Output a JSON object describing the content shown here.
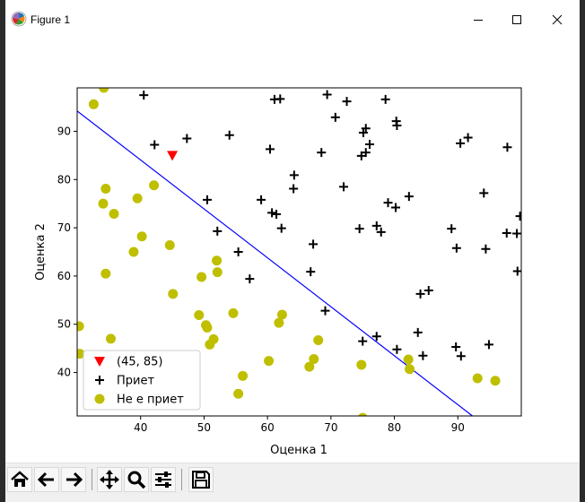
{
  "window": {
    "title": "Figure 1",
    "controls": {
      "minimize": "minimize-icon",
      "maximize": "maximize-icon",
      "close": "close-icon"
    }
  },
  "toolbar": {
    "buttons": [
      "home-icon",
      "back-icon",
      "forward-icon",
      "pan-icon",
      "zoom-icon",
      "configure-icon",
      "save-icon"
    ]
  },
  "chart_data": {
    "type": "scatter",
    "xlabel": "Оценка 1",
    "ylabel": "Оценка 2",
    "xlim": [
      30,
      100
    ],
    "ylim": [
      31,
      99
    ],
    "xticks": [
      40,
      50,
      60,
      70,
      80,
      90
    ],
    "yticks": [
      40,
      50,
      60,
      70,
      80,
      90
    ],
    "legend_position": "lower-left",
    "decision_boundary": {
      "x": [
        30,
        92.3
      ],
      "y": [
        94.2,
        31
      ],
      "color": "#0000ff"
    },
    "series": [
      {
        "name": "(45, 85)",
        "marker": "triangle-down",
        "color": "#ff0000",
        "points": [
          [
            45,
            85
          ]
        ]
      },
      {
        "name": "Приет",
        "marker": "plus",
        "color": "#000000",
        "points": [
          [
            40.5,
            97.5
          ],
          [
            42.2,
            87.2
          ],
          [
            47.3,
            88.5
          ],
          [
            54.0,
            89.2
          ],
          [
            50.5,
            75.8
          ],
          [
            52.1,
            69.3
          ],
          [
            55.4,
            65.0
          ],
          [
            57.2,
            59.4
          ],
          [
            59.0,
            75.8
          ],
          [
            60.4,
            86.3
          ],
          [
            60.7,
            73.1
          ],
          [
            61.1,
            96.6
          ],
          [
            61.4,
            72.8
          ],
          [
            62.0,
            96.7
          ],
          [
            62.2,
            69.9
          ],
          [
            64.2,
            80.9
          ],
          [
            64.1,
            78.1
          ],
          [
            66.8,
            60.9
          ],
          [
            67.2,
            66.6
          ],
          [
            68.5,
            85.6
          ],
          [
            69.1,
            52.8
          ],
          [
            69.4,
            97.6
          ],
          [
            70.7,
            92.9
          ],
          [
            72.0,
            78.5
          ],
          [
            72.5,
            96.2
          ],
          [
            74.5,
            69.8
          ],
          [
            74.8,
            84.9
          ],
          [
            75.1,
            89.7
          ],
          [
            75.0,
            46.5
          ],
          [
            75.5,
            90.6
          ],
          [
            75.5,
            85.6
          ],
          [
            76.1,
            87.3
          ],
          [
            77.2,
            47.5
          ],
          [
            77.2,
            70.4
          ],
          [
            77.9,
            69.1
          ],
          [
            78.6,
            96.6
          ],
          [
            79.0,
            75.2
          ],
          [
            80.2,
            74.2
          ],
          [
            80.3,
            92.1
          ],
          [
            80.4,
            91.2
          ],
          [
            80.4,
            44.8
          ],
          [
            82.3,
            76.5
          ],
          [
            83.7,
            48.3
          ],
          [
            84.1,
            56.3
          ],
          [
            84.5,
            43.5
          ],
          [
            85.4,
            57.0
          ],
          [
            89.0,
            69.8
          ],
          [
            89.7,
            45.3
          ],
          [
            89.8,
            65.8
          ],
          [
            90.4,
            87.5
          ],
          [
            90.5,
            43.4
          ],
          [
            91.6,
            88.7
          ],
          [
            94.1,
            77.2
          ],
          [
            94.4,
            65.6
          ],
          [
            94.9,
            45.8
          ],
          [
            97.7,
            68.9
          ],
          [
            97.8,
            86.7
          ],
          [
            99.3,
            68.8
          ],
          [
            99.4,
            61.0
          ],
          [
            99.8,
            72.4
          ]
        ]
      },
      {
        "name": "Не е приет",
        "marker": "circle",
        "color": "#bfbf00",
        "points": [
          [
            30.3,
            49.6
          ],
          [
            30.4,
            43.9
          ],
          [
            32.6,
            95.6
          ],
          [
            34.2,
            99.0
          ],
          [
            34.1,
            75.0
          ],
          [
            34.5,
            78.1
          ],
          [
            34.5,
            60.5
          ],
          [
            35.3,
            47.0
          ],
          [
            35.8,
            72.9
          ],
          [
            38.9,
            65.0
          ],
          [
            39.5,
            76.1
          ],
          [
            40.2,
            68.2
          ],
          [
            42.1,
            78.8
          ],
          [
            44.6,
            66.4
          ],
          [
            45.1,
            56.3
          ],
          [
            49.2,
            51.9
          ],
          [
            49.6,
            59.8
          ],
          [
            50.3,
            49.8
          ],
          [
            50.5,
            49.3
          ],
          [
            50.9,
            45.8
          ],
          [
            51.5,
            46.9
          ],
          [
            52.0,
            63.2
          ],
          [
            52.1,
            60.8
          ],
          [
            54.6,
            52.3
          ],
          [
            55.4,
            35.6
          ],
          [
            56.1,
            39.3
          ],
          [
            60.2,
            42.4
          ],
          [
            61.8,
            50.3
          ],
          [
            62.3,
            52.0
          ],
          [
            66.6,
            41.2
          ],
          [
            67.3,
            42.8
          ],
          [
            68.0,
            46.7
          ],
          [
            74.8,
            41.6
          ],
          [
            75.0,
            30.6
          ],
          [
            82.2,
            42.7
          ],
          [
            82.4,
            40.7
          ],
          [
            93.1,
            38.8
          ],
          [
            95.9,
            38.3
          ]
        ]
      }
    ]
  }
}
